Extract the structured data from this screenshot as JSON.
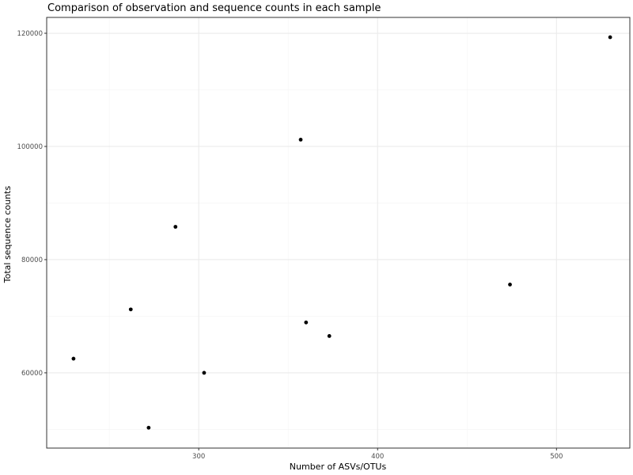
{
  "chart_data": {
    "type": "scatter",
    "title": "Comparison of observation and sequence counts in each sample",
    "xlabel": "Number of ASVs/OTUs",
    "ylabel": "Total sequence counts",
    "xlim": [
      215,
      541
    ],
    "ylim": [
      46700,
      122800
    ],
    "x_ticks": [
      300,
      400,
      500
    ],
    "x_tick_labels": [
      "300",
      "400",
      "500"
    ],
    "x_minor_ticks": [
      250,
      350,
      450
    ],
    "y_ticks": [
      60000,
      80000,
      100000,
      120000
    ],
    "y_tick_labels": [
      "60000",
      "80000",
      "100000",
      "120000"
    ],
    "y_minor_ticks": [
      50000,
      70000,
      90000,
      110000
    ],
    "grid": true,
    "legend": "none",
    "theme": "bw",
    "colors": {
      "point": "#000000",
      "panel_border": "#333333",
      "grid_major": "#ebebeb",
      "grid_minor": "#f4f4f4",
      "tick_text": "#4d4d4d",
      "text": "#000000",
      "background": "#ffffff"
    },
    "points": [
      {
        "x": 230,
        "y": 62500
      },
      {
        "x": 262,
        "y": 71200
      },
      {
        "x": 272,
        "y": 50300
      },
      {
        "x": 287,
        "y": 85800
      },
      {
        "x": 303,
        "y": 60000
      },
      {
        "x": 357,
        "y": 101200
      },
      {
        "x": 360,
        "y": 68900
      },
      {
        "x": 373,
        "y": 66500
      },
      {
        "x": 474,
        "y": 75600
      },
      {
        "x": 530,
        "y": 119300
      }
    ]
  }
}
